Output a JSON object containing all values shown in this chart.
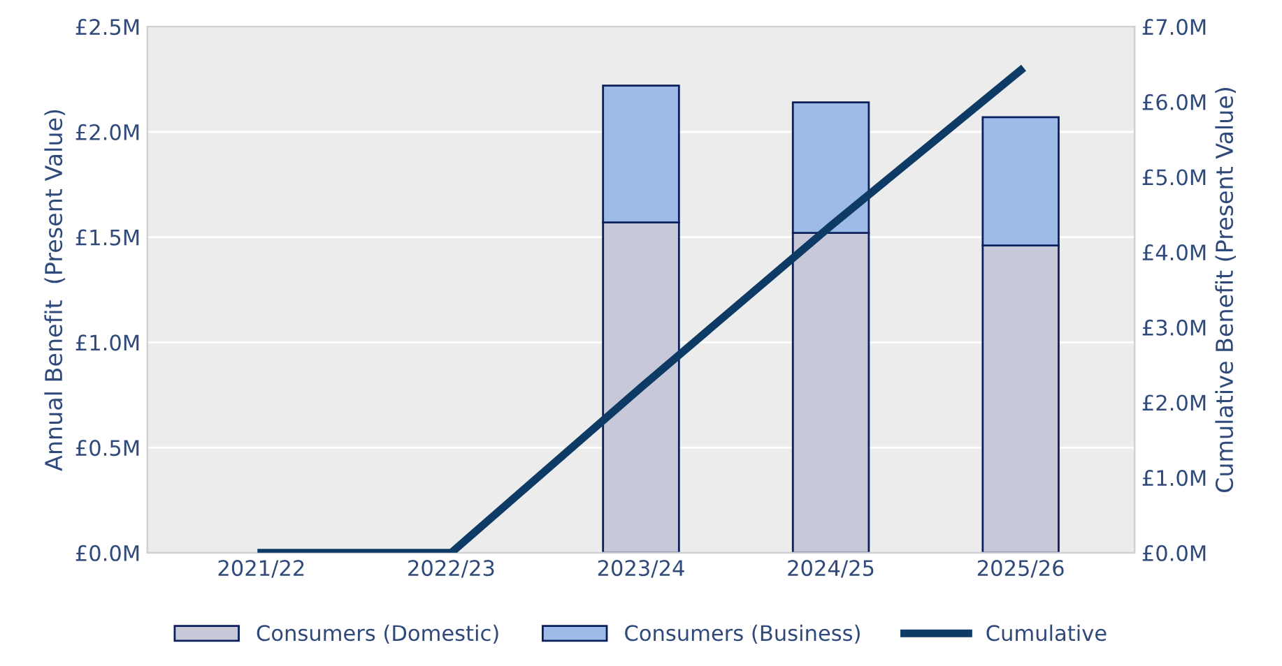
{
  "chart_data": {
    "type": "bar",
    "stacked": true,
    "categories": [
      "2021/22",
      "2022/23",
      "2023/24",
      "2024/25",
      "2025/26"
    ],
    "ylabel": "Annual Benefit  (Present Value)",
    "y2label": "Cumulative Benefit (Present Value)",
    "ylim": [
      0,
      2.5
    ],
    "yticks": [
      {
        "value": 0,
        "label": "£0.0M"
      },
      {
        "value": 0.5,
        "label": "£0.5M"
      },
      {
        "value": 1.0,
        "label": "£1.0M"
      },
      {
        "value": 1.5,
        "label": "£1.5M"
      },
      {
        "value": 2.0,
        "label": "£2.0M"
      },
      {
        "value": 2.5,
        "label": "£2.5M"
      }
    ],
    "y2lim": [
      0,
      7
    ],
    "y2ticks": [
      {
        "value": 0,
        "label": "£0.0M"
      },
      {
        "value": 1,
        "label": "£1.0M"
      },
      {
        "value": 2,
        "label": "£2.0M"
      },
      {
        "value": 3,
        "label": "£3.0M"
      },
      {
        "value": 4,
        "label": "£4.0M"
      },
      {
        "value": 5,
        "label": "£5.0M"
      },
      {
        "value": 6,
        "label": "£6.0M"
      },
      {
        "value": 7,
        "label": "£7.0M"
      }
    ],
    "grid": "y",
    "legend": "bottom",
    "series": [
      {
        "name": "Consumers (Domestic)",
        "color": "#c8c9d8",
        "values": [
          null,
          null,
          1.57,
          1.52,
          1.46
        ]
      },
      {
        "name": "Consumers (Business)",
        "color": "#9dbbe6",
        "values": [
          null,
          null,
          0.65,
          0.62,
          0.61
        ]
      },
      {
        "name": "Cumulative",
        "type": "line",
        "axis": "y2",
        "color": "#0d3b66",
        "line_style": "solid",
        "marker": "none",
        "values": [
          0,
          0,
          2.2,
          4.35,
          6.42
        ]
      }
    ]
  }
}
